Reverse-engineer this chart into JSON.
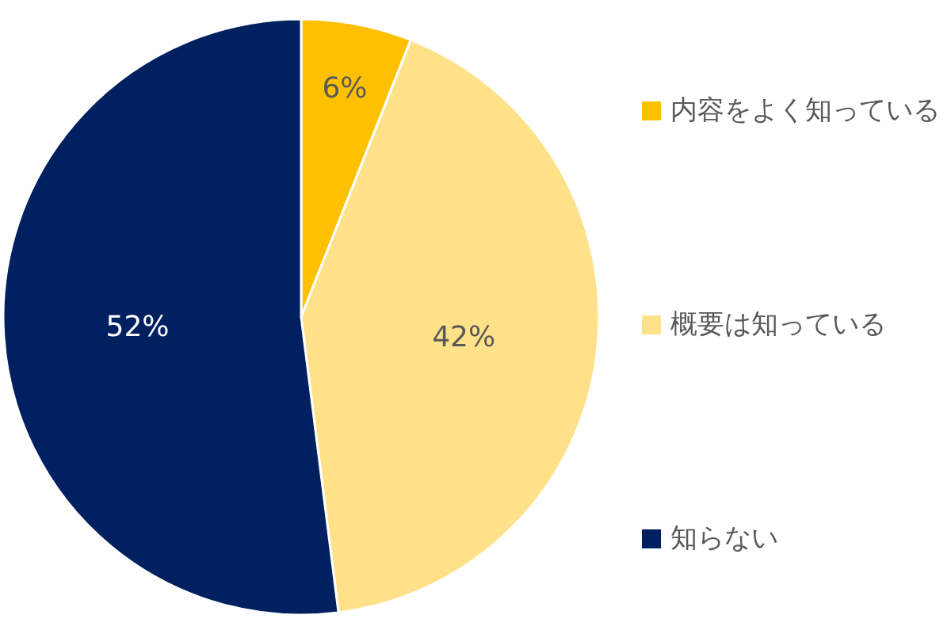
{
  "chart_data": {
    "type": "pie",
    "categories": [
      "内容をよく知っている",
      "概要は知っている",
      "知らない"
    ],
    "values": [
      6,
      42,
      52
    ],
    "colors": [
      "#ffc000",
      "#ffe18a",
      "#002060"
    ],
    "value_labels": [
      "6%",
      "42%",
      "52%"
    ],
    "legend": "right"
  }
}
